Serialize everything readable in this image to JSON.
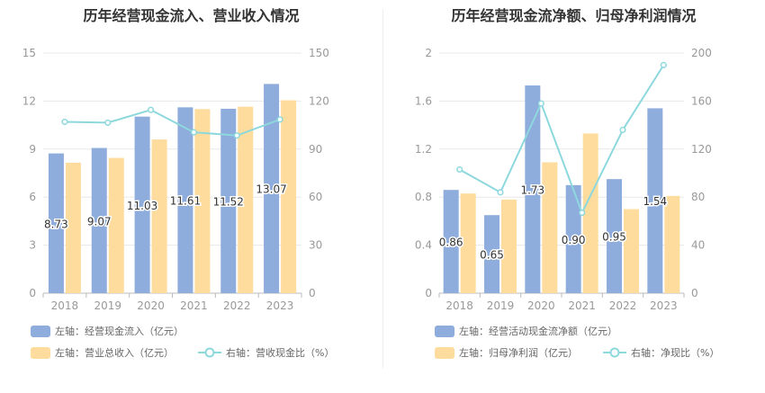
{
  "colors": {
    "bar1": "#8eacdc",
    "bar2": "#fddc9e",
    "line": "#8dd8dd",
    "grid": "#e8e8e8",
    "axis": "#999999"
  },
  "chart_data": [
    {
      "type": "bar",
      "title": "历年经营现金流入、营业收入情况",
      "categories": [
        "2018",
        "2019",
        "2020",
        "2021",
        "2022",
        "2023"
      ],
      "left_axis": {
        "min": 0,
        "max": 15,
        "ticks": [
          "0",
          "3",
          "6",
          "9",
          "12",
          "15"
        ]
      },
      "right_axis": {
        "min": 0,
        "max": 150,
        "ticks": [
          "0",
          "30",
          "60",
          "90",
          "120",
          "150"
        ]
      },
      "series": [
        {
          "name": "左轴：经营现金流入（亿元）",
          "axis": "left",
          "kind": "bar",
          "values": [
            8.73,
            9.07,
            11.03,
            11.61,
            11.52,
            13.07
          ],
          "labels": [
            "8.73",
            "9.07",
            "11.03",
            "11.61",
            "11.52",
            "13.07"
          ]
        },
        {
          "name": "左轴：营业总收入（亿元）",
          "axis": "left",
          "kind": "bar",
          "values": [
            8.15,
            8.45,
            9.6,
            11.5,
            11.65,
            12.05
          ]
        },
        {
          "name": "右轴：营收现金比（%）",
          "axis": "right",
          "kind": "line",
          "values": [
            107,
            106.5,
            114.5,
            100.5,
            98.5,
            108.5
          ]
        }
      ]
    },
    {
      "type": "bar",
      "title": "历年经营现金流净额、归母净利润情况",
      "categories": [
        "2018",
        "2019",
        "2020",
        "2021",
        "2022",
        "2023"
      ],
      "left_axis": {
        "min": 0,
        "max": 2,
        "ticks": [
          "0",
          "0.4",
          "0.8",
          "1.2",
          "1.6",
          "2"
        ]
      },
      "right_axis": {
        "min": 0,
        "max": 200,
        "ticks": [
          "0",
          "40",
          "80",
          "120",
          "160",
          "200"
        ]
      },
      "series": [
        {
          "name": "左轴：经营活动现金流净额（亿元）",
          "axis": "left",
          "kind": "bar",
          "values": [
            0.86,
            0.65,
            1.73,
            0.9,
            0.95,
            1.54
          ],
          "labels": [
            "0.86",
            "0.65",
            "1.73",
            "0.90",
            "0.95",
            "1.54"
          ]
        },
        {
          "name": "左轴：归母净利润（亿元）",
          "axis": "left",
          "kind": "bar",
          "values": [
            0.83,
            0.78,
            1.09,
            1.33,
            0.7,
            0.81
          ]
        },
        {
          "name": "右轴：净现比（%）",
          "axis": "right",
          "kind": "line",
          "values": [
            103,
            84,
            158,
            67,
            136,
            190
          ]
        }
      ]
    }
  ]
}
